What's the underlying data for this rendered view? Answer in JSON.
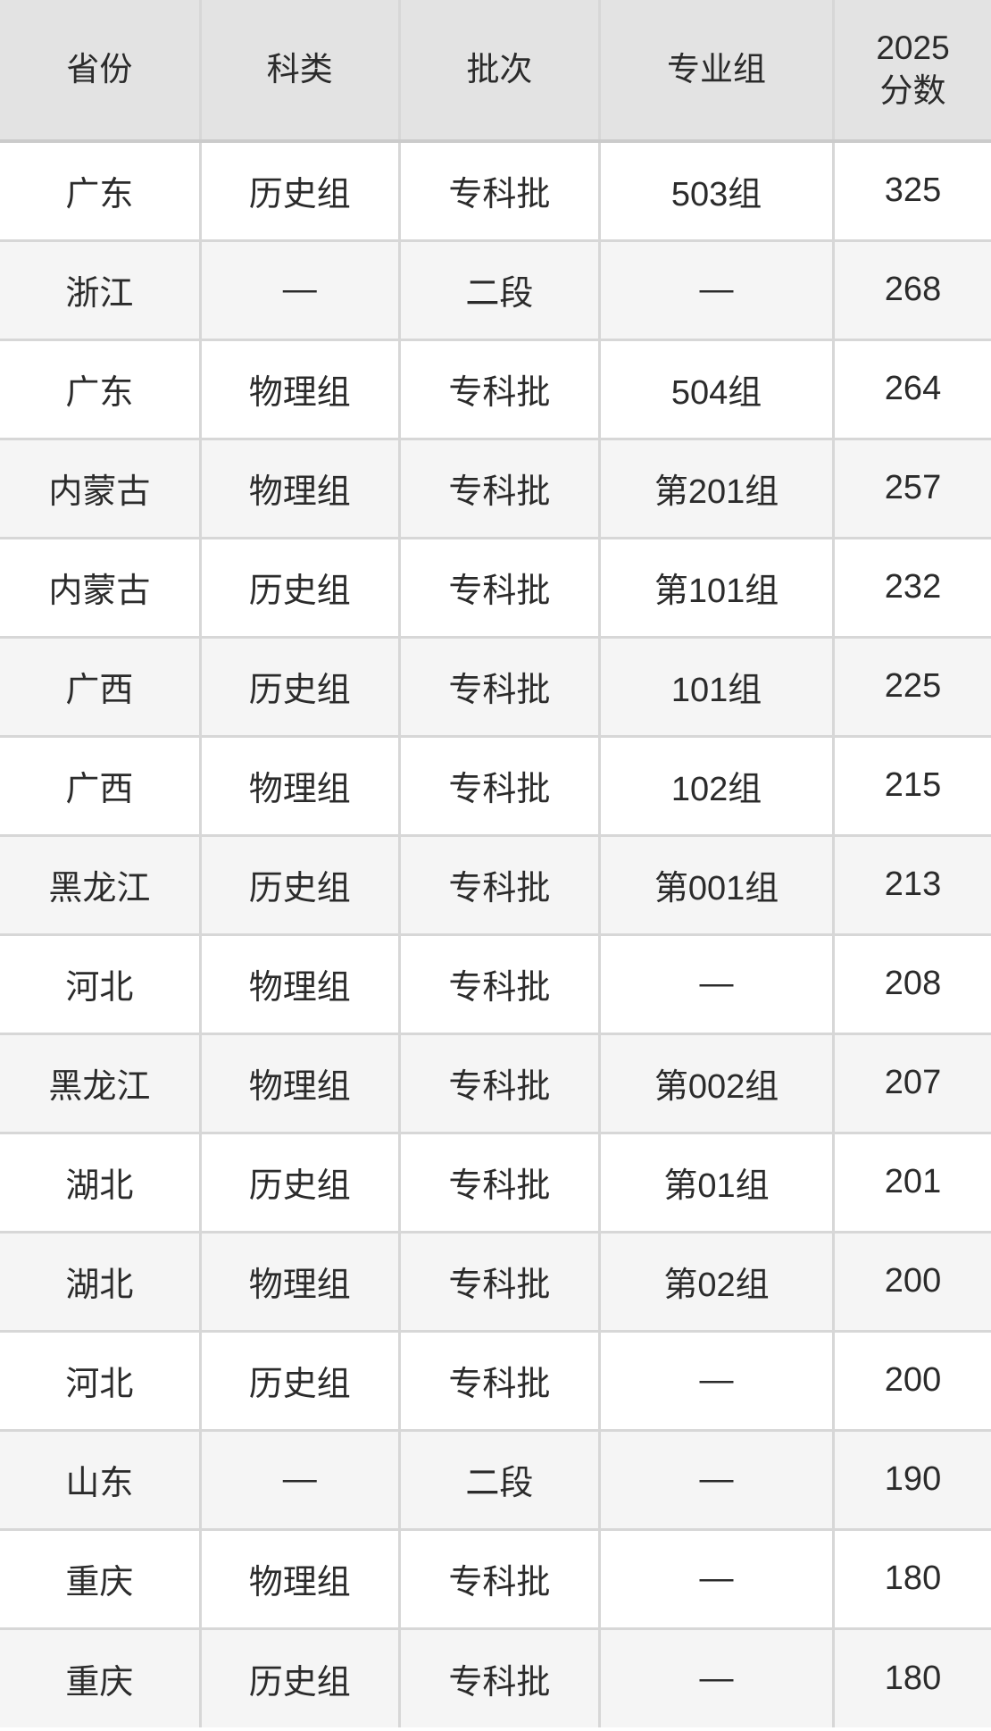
{
  "chart_data": {
    "type": "table",
    "title": "",
    "columns": [
      "省份",
      "科类",
      "批次",
      "专业组",
      "2025\n分数"
    ],
    "rows": [
      [
        "广东",
        "历史组",
        "专科批",
        "503组",
        "325"
      ],
      [
        "浙江",
        "—",
        "二段",
        "—",
        "268"
      ],
      [
        "广东",
        "物理组",
        "专科批",
        "504组",
        "264"
      ],
      [
        "内蒙古",
        "物理组",
        "专科批",
        "第201组",
        "257"
      ],
      [
        "内蒙古",
        "历史组",
        "专科批",
        "第101组",
        "232"
      ],
      [
        "广西",
        "历史组",
        "专科批",
        "101组",
        "225"
      ],
      [
        "广西",
        "物理组",
        "专科批",
        "102组",
        "215"
      ],
      [
        "黑龙江",
        "历史组",
        "专科批",
        "第001组",
        "213"
      ],
      [
        "河北",
        "物理组",
        "专科批",
        "—",
        "208"
      ],
      [
        "黑龙江",
        "物理组",
        "专科批",
        "第002组",
        "207"
      ],
      [
        "湖北",
        "历史组",
        "专科批",
        "第01组",
        "201"
      ],
      [
        "湖北",
        "物理组",
        "专科批",
        "第02组",
        "200"
      ],
      [
        "河北",
        "历史组",
        "专科批",
        "—",
        "200"
      ],
      [
        "山东",
        "—",
        "二段",
        "—",
        "190"
      ],
      [
        "重庆",
        "物理组",
        "专科批",
        "—",
        "180"
      ],
      [
        "重庆",
        "历史组",
        "专科批",
        "—",
        "180"
      ]
    ]
  },
  "colors": {
    "header_bg": "#e3e3e3",
    "row_bg": "#ffffff",
    "row_alt_bg": "#f5f5f5",
    "border": "#d7d7d7",
    "header_border": "#cbcbcb",
    "text": "#2b2b2b"
  }
}
